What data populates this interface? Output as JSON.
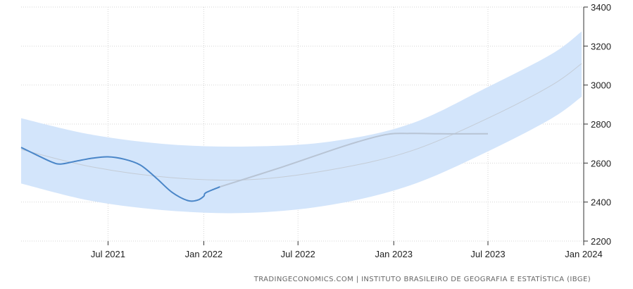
{
  "chart_data": {
    "type": "line",
    "title": "",
    "xlabel": "",
    "ylabel": "",
    "xlim": [
      "2021-01-15",
      "2024-01-01"
    ],
    "ylim": [
      2200,
      3400
    ],
    "y_ticks": [
      2200,
      2400,
      2600,
      2800,
      3000,
      3200,
      3400
    ],
    "x_ticks": [
      {
        "date": "2021-07-01",
        "label": "Jul 2021"
      },
      {
        "date": "2022-01-01",
        "label": "Jan 2022"
      },
      {
        "date": "2022-07-01",
        "label": "Jul 2022"
      },
      {
        "date": "2023-01-01",
        "label": "Jan 2023"
      },
      {
        "date": "2023-07-01",
        "label": "Jul 2023"
      },
      {
        "date": "2024-01-01",
        "label": "Jan 2024"
      }
    ],
    "grid": true,
    "y_axis_position": "right",
    "colors": {
      "actual": "#4a86c8",
      "forecast": "#b8c4d4",
      "trend": "#c4ccd6",
      "band": "#d3e5fb",
      "grid": "#d6d6d6",
      "axis": "#333333"
    },
    "series": [
      {
        "kind": "actual",
        "points": [
          [
            "2021-01-15",
            2680
          ],
          [
            "2021-02-15",
            2640
          ],
          [
            "2021-03-15",
            2605
          ],
          [
            "2021-04-01",
            2595
          ],
          [
            "2021-05-01",
            2610
          ],
          [
            "2021-06-01",
            2625
          ],
          [
            "2021-07-01",
            2632
          ],
          [
            "2021-08-01",
            2620
          ],
          [
            "2021-09-01",
            2590
          ],
          [
            "2021-10-01",
            2525
          ],
          [
            "2021-11-01",
            2450
          ],
          [
            "2021-12-01",
            2408
          ],
          [
            "2021-12-20",
            2410
          ],
          [
            "2022-01-01",
            2430
          ],
          [
            "2022-01-05",
            2448
          ],
          [
            "2022-02-01",
            2478
          ]
        ]
      },
      {
        "kind": "forecast",
        "points": [
          [
            "2022-02-01",
            2478
          ],
          [
            "2022-06-01",
            2580
          ],
          [
            "2022-10-01",
            2690
          ],
          [
            "2022-12-15",
            2745
          ],
          [
            "2023-02-01",
            2752
          ],
          [
            "2023-04-01",
            2750
          ],
          [
            "2023-07-01",
            2750
          ]
        ]
      },
      {
        "kind": "trend",
        "points": [
          [
            "2021-01-15",
            2670
          ],
          [
            "2021-06-01",
            2580
          ],
          [
            "2021-11-01",
            2525
          ],
          [
            "2022-04-01",
            2515
          ],
          [
            "2022-09-01",
            2565
          ],
          [
            "2023-02-01",
            2660
          ],
          [
            "2023-07-01",
            2830
          ],
          [
            "2023-11-01",
            3000
          ],
          [
            "2023-12-28",
            3110
          ]
        ]
      },
      {
        "kind": "band",
        "upper": [
          [
            "2021-01-15",
            2830
          ],
          [
            "2021-06-01",
            2745
          ],
          [
            "2021-11-01",
            2695
          ],
          [
            "2022-04-01",
            2685
          ],
          [
            "2022-09-01",
            2710
          ],
          [
            "2023-02-01",
            2800
          ],
          [
            "2023-07-01",
            2990
          ],
          [
            "2023-11-01",
            3160
          ],
          [
            "2023-12-28",
            3275
          ]
        ],
        "lower": [
          [
            "2021-01-15",
            2495
          ],
          [
            "2021-06-01",
            2405
          ],
          [
            "2021-11-01",
            2355
          ],
          [
            "2022-04-01",
            2345
          ],
          [
            "2022-09-01",
            2385
          ],
          [
            "2023-02-01",
            2485
          ],
          [
            "2023-07-01",
            2660
          ],
          [
            "2023-11-01",
            2830
          ],
          [
            "2023-12-28",
            2940
          ]
        ]
      }
    ]
  },
  "footer": {
    "source": "TRADINGECONOMICS.COM  |  INSTITUTO BRASILEIRO DE GEOGRAFIA E ESTATÍSTICA (IBGE)"
  }
}
